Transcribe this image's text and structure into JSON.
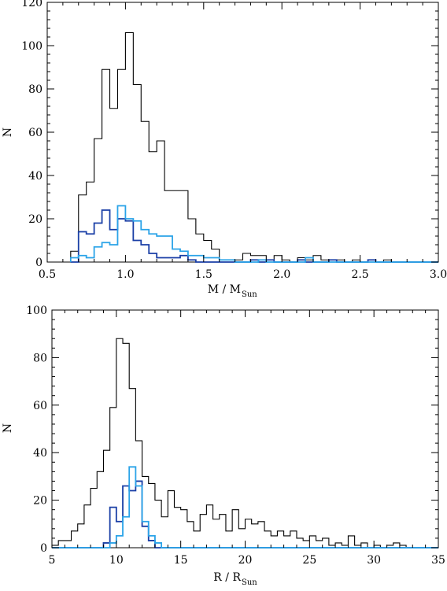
{
  "chart_data": [
    {
      "type": "histogram",
      "xlabel": "M / M",
      "xlabel_sub": "Sun",
      "ylabel": "N",
      "xlim": [
        0.5,
        3.0
      ],
      "ylim": [
        0,
        120
      ],
      "xticks": [
        0.5,
        1.0,
        1.5,
        2.0,
        2.5,
        3.0
      ],
      "xtick_labels": [
        "0.5",
        "1.0",
        "1.5",
        "2.0",
        "2.5",
        "3.0"
      ],
      "yticks": [
        0,
        20,
        40,
        60,
        80,
        100,
        120
      ],
      "ytick_labels": [
        "0",
        "20",
        "40",
        "60",
        "80",
        "100",
        "120"
      ],
      "grid": false,
      "bin_edges": [
        0.65,
        0.7,
        0.75,
        0.8,
        0.85,
        0.9,
        0.95,
        1.0,
        1.05,
        1.1,
        1.15,
        1.2,
        1.25,
        1.3,
        1.35,
        1.4,
        1.45,
        1.5,
        1.55,
        1.6,
        1.65,
        1.7,
        1.75,
        1.8,
        1.85,
        1.9,
        1.95,
        2.0,
        2.05,
        2.1,
        2.15,
        2.2,
        2.25,
        2.3,
        2.35,
        2.4,
        2.45,
        2.5,
        2.55,
        2.6,
        2.65,
        2.7,
        2.75,
        2.8,
        2.85,
        2.9,
        2.95,
        3.0
      ],
      "series": [
        {
          "color": "#000000",
          "values": [
            5,
            31,
            37,
            57,
            89,
            71,
            89,
            106,
            82,
            65,
            51,
            56,
            33,
            33,
            33,
            20,
            13,
            10,
            6,
            1,
            1,
            1,
            4,
            3,
            3,
            1,
            3,
            1,
            0,
            2,
            1,
            3,
            1,
            0,
            1,
            0,
            1,
            0,
            0,
            0,
            1,
            0,
            0,
            0,
            0,
            0,
            0
          ]
        },
        {
          "color": "#1a3fa6",
          "values": [
            0,
            14,
            13,
            18,
            24,
            15,
            20,
            19,
            10,
            8,
            4,
            2,
            2,
            2,
            3,
            1,
            0,
            0,
            0,
            0,
            0,
            0,
            0,
            1,
            0,
            1,
            0,
            0,
            0,
            1,
            0,
            0,
            0,
            1,
            0,
            0,
            0,
            0,
            1,
            0,
            0,
            0,
            0,
            0,
            0,
            0,
            0
          ]
        },
        {
          "color": "#2aa3e8",
          "values": [
            2,
            3,
            2,
            7,
            9,
            8,
            26,
            20,
            19,
            15,
            13,
            12,
            12,
            6,
            5,
            3,
            3,
            2,
            2,
            1,
            1,
            0,
            0,
            0,
            1,
            0,
            0,
            0,
            0,
            0,
            2,
            0,
            0,
            0,
            0,
            0,
            0,
            0,
            0,
            0,
            0,
            0,
            0,
            0,
            0,
            0,
            0
          ]
        }
      ]
    },
    {
      "type": "histogram",
      "xlabel": "R / R",
      "xlabel_sub": "Sun",
      "ylabel": "N",
      "xlim": [
        5,
        35
      ],
      "ylim": [
        0,
        100
      ],
      "xticks": [
        5,
        10,
        15,
        20,
        25,
        30,
        35
      ],
      "xtick_labels": [
        "5",
        "10",
        "15",
        "20",
        "25",
        "30",
        "35"
      ],
      "yticks": [
        0,
        20,
        40,
        60,
        80,
        100
      ],
      "ytick_labels": [
        "0",
        "20",
        "40",
        "60",
        "80",
        "100"
      ],
      "grid": false,
      "bin_edges": [
        5.0,
        5.5,
        6.0,
        6.5,
        7.0,
        7.5,
        8.0,
        8.5,
        9.0,
        9.5,
        10.0,
        10.5,
        11.0,
        11.5,
        12.0,
        12.5,
        13.0,
        13.5,
        14.0,
        14.5,
        15.0,
        15.5,
        16.0,
        16.5,
        17.0,
        17.5,
        18.0,
        18.5,
        19.0,
        19.5,
        20.0,
        20.5,
        21.0,
        21.5,
        22.0,
        22.5,
        23.0,
        23.5,
        24.0,
        24.5,
        25.0,
        25.5,
        26.0,
        26.5,
        27.0,
        27.5,
        28.0,
        28.5,
        29.0,
        29.5,
        30.0,
        30.5,
        31.0,
        31.5,
        32.0,
        32.5,
        33.0,
        33.5,
        34.0,
        34.5,
        35.0
      ],
      "series": [
        {
          "color": "#000000",
          "values": [
            1,
            3,
            3,
            7,
            10,
            18,
            25,
            32,
            41,
            59,
            88,
            86,
            67,
            45,
            30,
            27,
            20,
            13,
            24,
            17,
            16,
            11,
            7,
            14,
            18,
            12,
            14,
            7,
            16,
            8,
            12,
            10,
            11,
            7,
            5,
            7,
            5,
            7,
            4,
            3,
            5,
            3,
            4,
            1,
            2,
            1,
            5,
            1,
            2,
            0,
            1,
            0,
            1,
            2,
            1,
            0,
            0,
            0,
            0,
            0
          ]
        },
        {
          "color": "#1a3fa6",
          "values": [
            0,
            0,
            0,
            0,
            0,
            0,
            0,
            0,
            2,
            17,
            11,
            26,
            24,
            28,
            9,
            3,
            0,
            0,
            0,
            0,
            0,
            0,
            0,
            0,
            0,
            0,
            0,
            0,
            0,
            0,
            0,
            0,
            0,
            0,
            0,
            0,
            0,
            0,
            0,
            0,
            0,
            0,
            0,
            0,
            0,
            0,
            0,
            0,
            0,
            0,
            0,
            0,
            0,
            0,
            0,
            0,
            0,
            0,
            0,
            0
          ]
        },
        {
          "color": "#2aa3e8",
          "values": [
            0,
            0,
            0,
            0,
            0,
            0,
            0,
            0,
            0,
            2,
            5,
            13,
            34,
            26,
            11,
            5,
            2,
            0,
            0,
            0,
            0,
            0,
            0,
            0,
            0,
            0,
            0,
            0,
            0,
            0,
            0,
            0,
            0,
            0,
            0,
            0,
            0,
            0,
            0,
            0,
            0,
            0,
            0,
            0,
            0,
            0,
            0,
            0,
            0,
            0,
            0,
            0,
            0,
            0,
            0,
            0,
            0,
            0,
            0,
            0
          ]
        }
      ]
    }
  ]
}
